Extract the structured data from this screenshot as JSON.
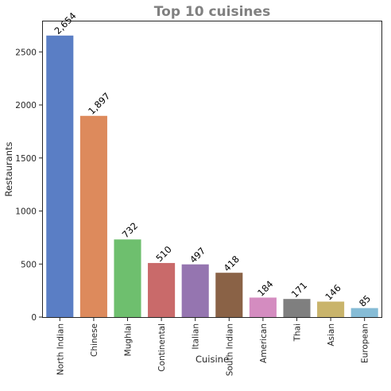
{
  "chart_data": {
    "type": "bar",
    "title": "Top 10 cuisines",
    "xlabel": "Cuisine",
    "ylabel": "Restaurants",
    "categories": [
      "North Indian",
      "Chinese",
      "Mughlai",
      "Continental",
      "Italian",
      "South Indian",
      "American",
      "Thai",
      "Asian",
      "European"
    ],
    "values": [
      2654,
      1897,
      732,
      510,
      497,
      418,
      184,
      171,
      146,
      85
    ],
    "value_labels": [
      "2,654",
      "1,897",
      "732",
      "510",
      "497",
      "418",
      "184",
      "171",
      "146",
      "85"
    ],
    "colors": [
      "#5a7ec5",
      "#dd8a5c",
      "#6ebf6e",
      "#c96a6a",
      "#9575b0",
      "#8a6246",
      "#d48cc0",
      "#7f7f7f",
      "#c9b46b",
      "#86bcd6"
    ],
    "yticks": [
      0,
      500,
      1000,
      1500,
      2000,
      2500
    ],
    "ylim": [
      0,
      2787
    ],
    "grid": false,
    "legend": "none"
  }
}
